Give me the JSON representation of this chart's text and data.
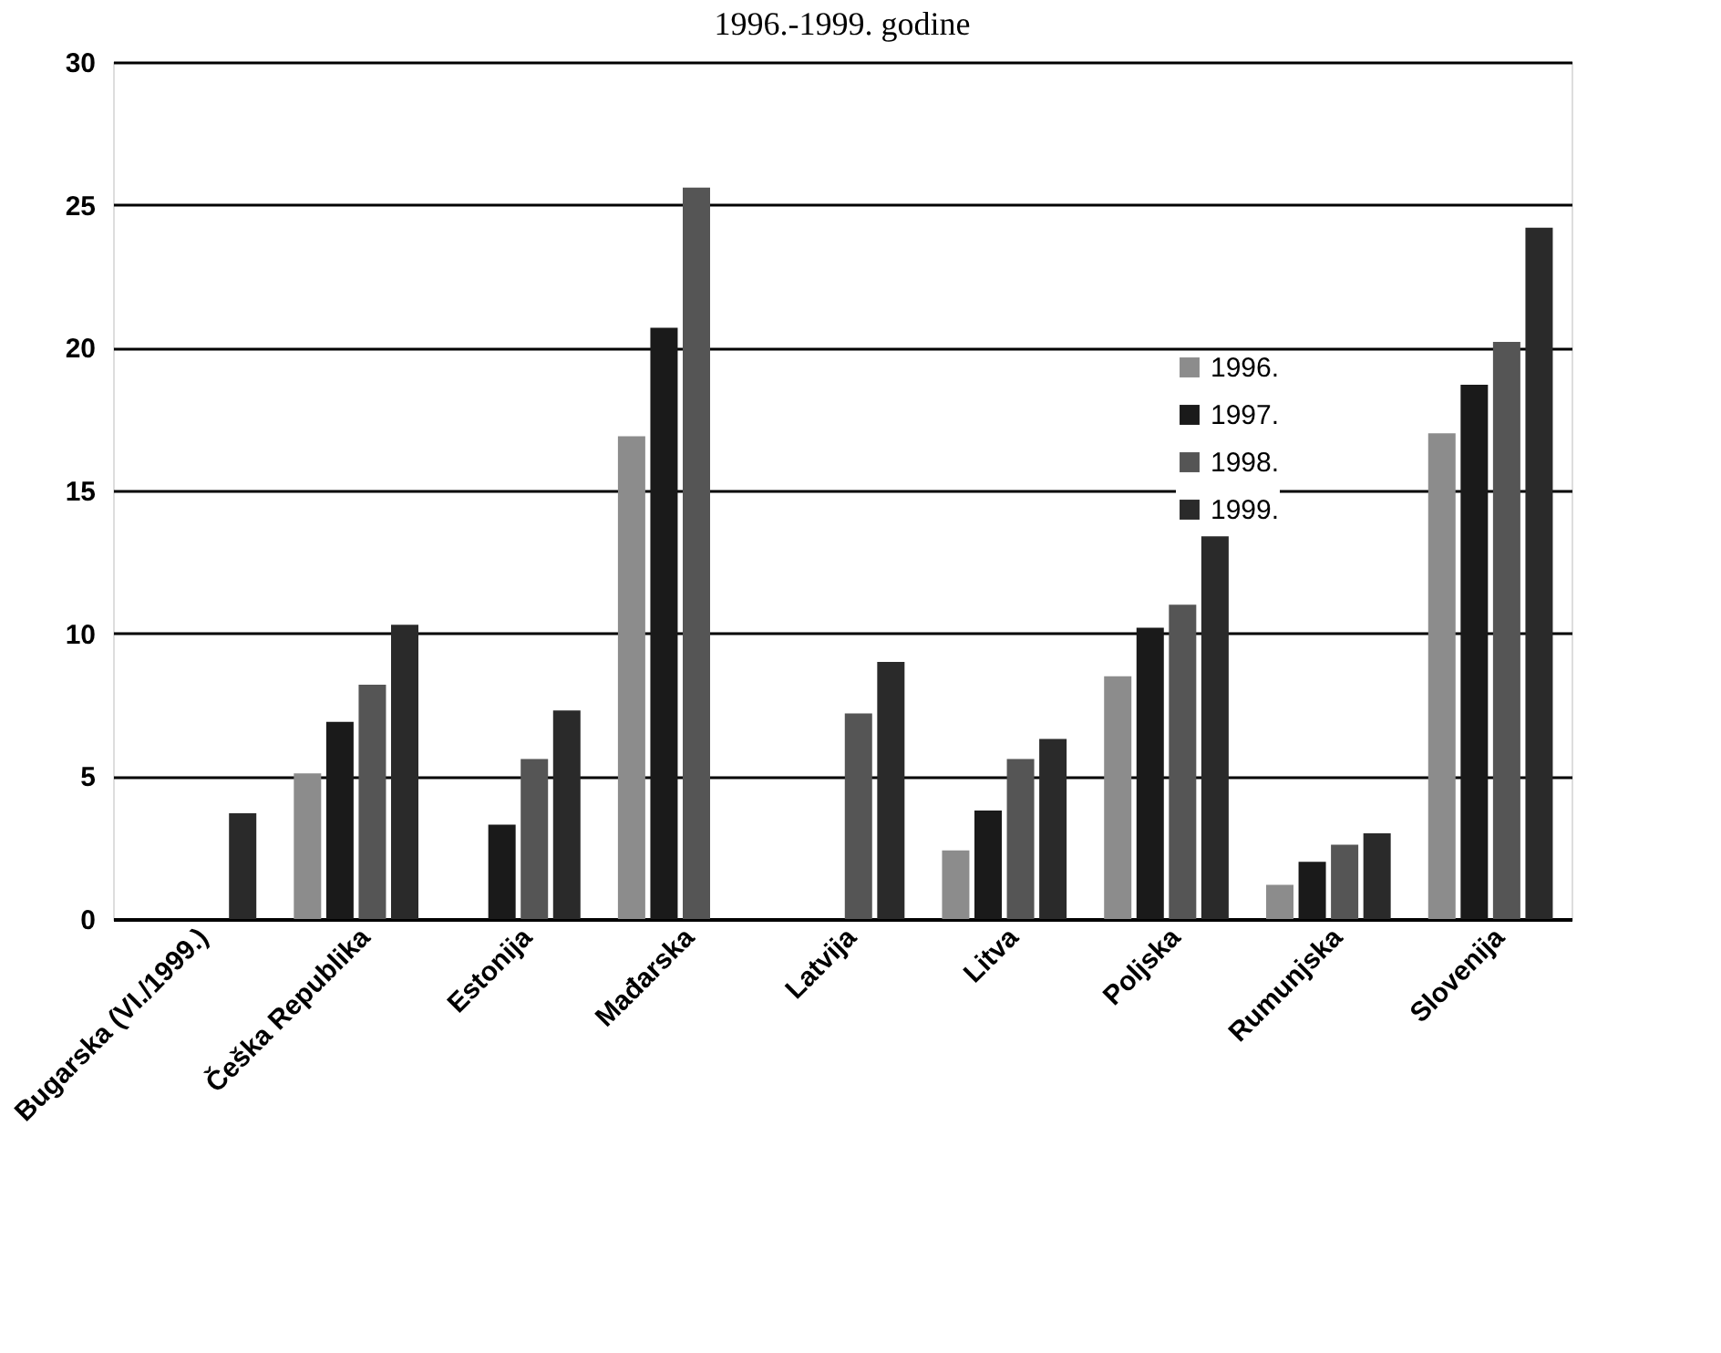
{
  "chart_data": {
    "type": "bar",
    "title": "1996.-1999. godine",
    "categories": [
      "Bugarska (VI./1999.)",
      "Češka Republika",
      "Estonija",
      "Mađarska",
      "Latvija",
      "Litva",
      "Poljska",
      "Rumunjska",
      "Slovenija"
    ],
    "series": [
      {
        "name": "1996.",
        "color": "#8c8c8c",
        "values": [
          null,
          5.1,
          null,
          16.9,
          null,
          2.4,
          8.5,
          1.2,
          17.0
        ]
      },
      {
        "name": "1997.",
        "color": "#1a1a1a",
        "values": [
          null,
          6.9,
          3.3,
          20.7,
          null,
          3.8,
          10.2,
          2.0,
          18.7
        ]
      },
      {
        "name": "1998.",
        "color": "#555555",
        "values": [
          null,
          8.2,
          5.6,
          25.6,
          7.2,
          5.6,
          11.0,
          2.6,
          20.2
        ]
      },
      {
        "name": "1999.",
        "color": "#2a2a2a",
        "values": [
          3.7,
          10.3,
          7.3,
          null,
          9.0,
          6.3,
          13.4,
          3.0,
          24.2
        ]
      }
    ],
    "ylim": [
      0,
      30
    ],
    "yticks": [
      0,
      5,
      10,
      15,
      20,
      25,
      30
    ],
    "grid": "y",
    "legend": "top right"
  }
}
